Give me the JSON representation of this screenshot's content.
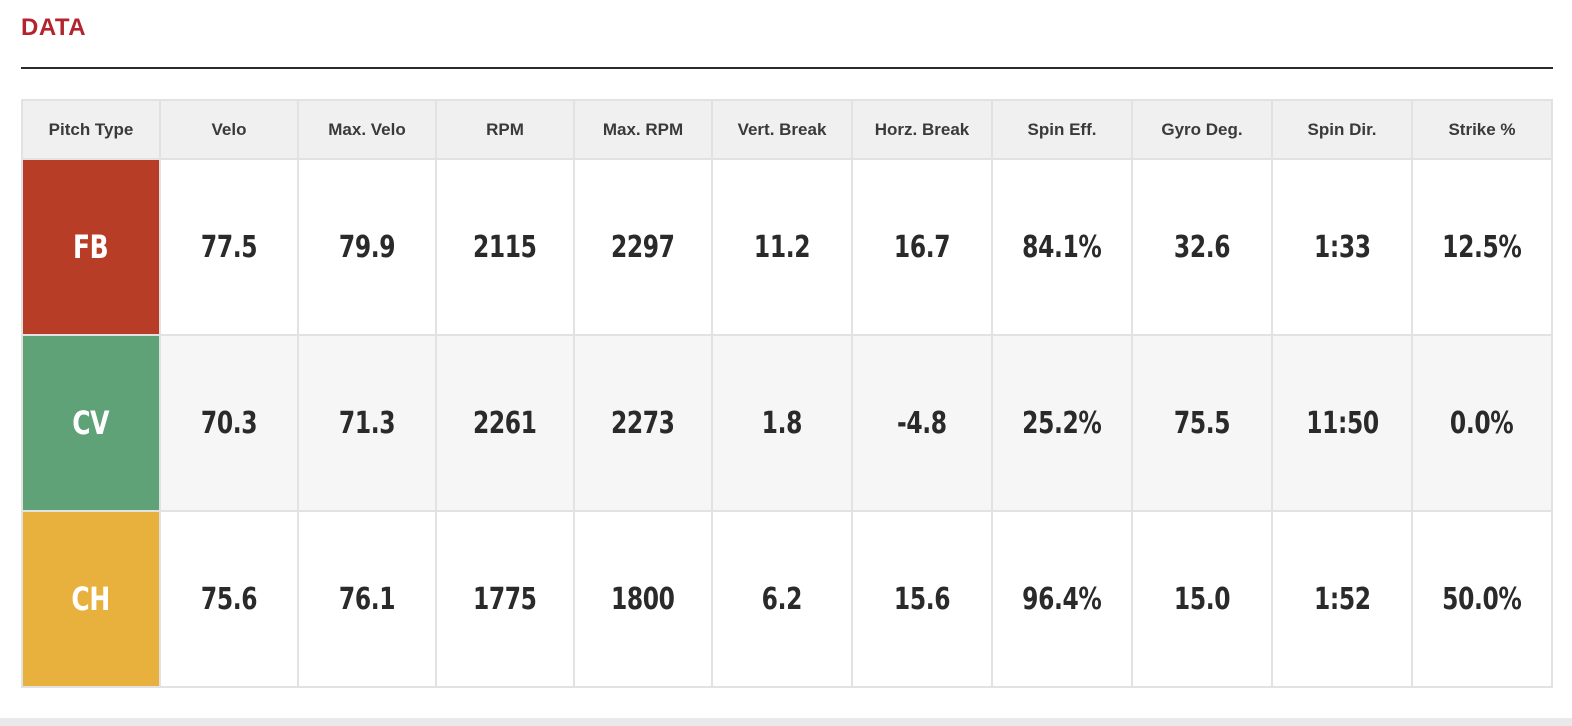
{
  "section": {
    "title": "DATA"
  },
  "table": {
    "headers": [
      "Pitch Type",
      "Velo",
      "Max. Velo",
      "RPM",
      "Max. RPM",
      "Vert. Break",
      "Horz. Break",
      "Spin Eff.",
      "Gyro Deg.",
      "Spin Dir.",
      "Strike %"
    ],
    "rows": [
      {
        "pitch": "FB",
        "color": "#b83d27",
        "values": [
          "77.5",
          "79.9",
          "2115",
          "2297",
          "11.2",
          "16.7",
          "84.1%",
          "32.6",
          "1:33",
          "12.5%"
        ]
      },
      {
        "pitch": "CV",
        "color": "#5fa278",
        "values": [
          "70.3",
          "71.3",
          "2261",
          "2273",
          "1.8",
          "-4.8",
          "25.2%",
          "75.5",
          "11:50",
          "0.0%"
        ]
      },
      {
        "pitch": "CH",
        "color": "#e8b13d",
        "values": [
          "75.6",
          "76.1",
          "1775",
          "1800",
          "6.2",
          "15.6",
          "96.4%",
          "15.0",
          "1:52",
          "50.0%"
        ]
      }
    ]
  }
}
